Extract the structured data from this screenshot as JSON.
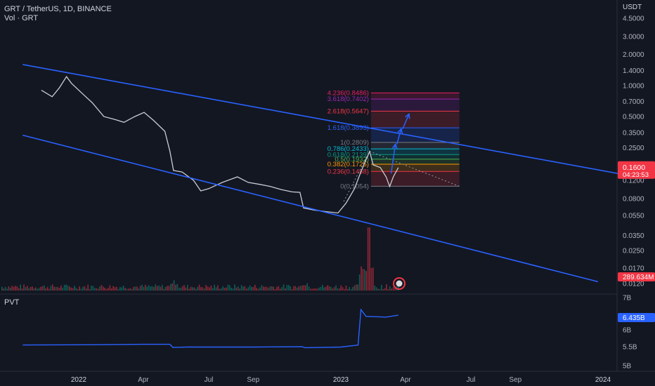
{
  "header": {
    "symbol_line": "GRT / TetherUS, 1D, BINANCE",
    "volume_label": "Vol · GRT",
    "currency": "USDT"
  },
  "pvt_panel": {
    "label": "PVT",
    "price_axis": [
      "7B",
      "6B",
      "5.5B",
      "5B"
    ],
    "current_badge": "6.435B"
  },
  "badges": {
    "price": "0.1600",
    "countdown": "04:23:53",
    "volume": "289.634M"
  },
  "colors": {
    "background": "#131722",
    "channel_line": "#2962ff",
    "price_badge": "#f23645",
    "pvt_line": "#2962ff",
    "volume_badge": "#f23645"
  },
  "chart_data": {
    "type": "line",
    "y_scale": "log",
    "price_axis_ticks": [
      "4.5000",
      "3.0000",
      "2.0000",
      "1.4000",
      "1.0000",
      "0.7000",
      "0.5000",
      "0.3500",
      "0.2500",
      "0.1200",
      "0.0800",
      "0.0550",
      "0.0350",
      "0.0250",
      "0.0170",
      "0.0120"
    ],
    "time_axis_ticks": [
      "2022",
      "Apr",
      "Jul",
      "Sep",
      "2023",
      "Apr",
      "Jul",
      "Sep",
      "2024"
    ],
    "price_path": [
      [
        "2021-11-10",
        0.9
      ],
      [
        "2021-11-25",
        0.78
      ],
      [
        "2021-12-05",
        0.95
      ],
      [
        "2021-12-15",
        1.22
      ],
      [
        "2021-12-22",
        1.05
      ],
      [
        "2022-01-05",
        0.85
      ],
      [
        "2022-01-20",
        0.68
      ],
      [
        "2022-02-05",
        0.5
      ],
      [
        "2022-02-20",
        0.47
      ],
      [
        "2022-03-05",
        0.44
      ],
      [
        "2022-03-20",
        0.5
      ],
      [
        "2022-04-02",
        0.55
      ],
      [
        "2022-04-15",
        0.46
      ],
      [
        "2022-05-01",
        0.36
      ],
      [
        "2022-05-08",
        0.23
      ],
      [
        "2022-05-13",
        0.15
      ],
      [
        "2022-05-25",
        0.145
      ],
      [
        "2022-06-10",
        0.12
      ],
      [
        "2022-06-20",
        0.095
      ],
      [
        "2022-07-01",
        0.1
      ],
      [
        "2022-07-20",
        0.115
      ],
      [
        "2022-08-10",
        0.13
      ],
      [
        "2022-08-25",
        0.115
      ],
      [
        "2022-09-10",
        0.11
      ],
      [
        "2022-09-25",
        0.105
      ],
      [
        "2022-10-10",
        0.098
      ],
      [
        "2022-10-25",
        0.093
      ],
      [
        "2022-11-05",
        0.092
      ],
      [
        "2022-11-10",
        0.065
      ],
      [
        "2022-11-25",
        0.062
      ],
      [
        "2022-12-10",
        0.06
      ],
      [
        "2022-12-28",
        0.058
      ],
      [
        "2023-01-08",
        0.072
      ],
      [
        "2023-01-20",
        0.1
      ],
      [
        "2023-01-28",
        0.14
      ],
      [
        "2023-02-05",
        0.19
      ],
      [
        "2023-02-10",
        0.23
      ],
      [
        "2023-02-15",
        0.17
      ],
      [
        "2023-02-25",
        0.16
      ],
      [
        "2023-03-05",
        0.13
      ],
      [
        "2023-03-10",
        0.105
      ],
      [
        "2023-03-15",
        0.13
      ],
      [
        "2023-03-22",
        0.16
      ]
    ],
    "fibonacci": {
      "levels": [
        {
          "label": "0(0.1054)",
          "value": 0.1054,
          "color": "#787b86"
        },
        {
          "label": "0.236(0.1468)",
          "value": 0.1468,
          "color": "#f23645"
        },
        {
          "label": "0.382(0.1725)",
          "value": 0.1725,
          "color": "#ff9800"
        },
        {
          "label": "0.5(0.1932)",
          "value": 0.1932,
          "color": "#4caf50"
        },
        {
          "label": "0.618(0.2139)",
          "value": 0.2139,
          "color": "#089981"
        },
        {
          "label": "0.786(0.2433)",
          "value": 0.2433,
          "color": "#00bcd4"
        },
        {
          "label": "1(0.2809)",
          "value": 0.2809,
          "color": "#787b86"
        },
        {
          "label": "1.618(0.3893)",
          "value": 0.3893,
          "color": "#2962ff"
        },
        {
          "label": "2.618(0.5647)",
          "value": 0.5647,
          "color": "#f23645"
        },
        {
          "label": "3.618(0.7402)",
          "value": 0.7402,
          "color": "#9c27b0"
        },
        {
          "label": "4.236(0.8486)",
          "value": 0.8486,
          "color": "#e91e63"
        }
      ],
      "start": "2023-02-12",
      "end": "2023-06-15"
    },
    "trend_channel": {
      "upper": [
        [
          "2021-10-15",
          1.6
        ],
        [
          "2024-03-01",
          0.125
        ]
      ],
      "lower": [
        [
          "2021-10-15",
          0.33
        ],
        [
          "2023-12-25",
          0.0125
        ]
      ]
    },
    "projection_arrows": [
      {
        "from": [
          "2023-03-12",
          0.14
        ],
        "to": [
          "2023-03-18",
          0.27
        ]
      },
      {
        "from": [
          "2023-03-20",
          0.27
        ],
        "to": [
          "2023-03-26",
          0.38
        ]
      },
      {
        "from": [
          "2023-03-28",
          0.38
        ],
        "to": [
          "2023-04-06",
          0.53
        ]
      }
    ],
    "pvt_path": [
      [
        "2021-10-15",
        5.55
      ],
      [
        "2022-02-01",
        5.56
      ],
      [
        "2022-04-01",
        5.57
      ],
      [
        "2022-05-08",
        5.57
      ],
      [
        "2022-05-12",
        5.48
      ],
      [
        "2022-06-01",
        5.49
      ],
      [
        "2022-09-01",
        5.49
      ],
      [
        "2022-11-08",
        5.5
      ],
      [
        "2022-11-12",
        5.47
      ],
      [
        "2023-01-01",
        5.49
      ],
      [
        "2023-01-25",
        5.55
      ],
      [
        "2023-01-29",
        6.6
      ],
      [
        "2023-02-05",
        6.4
      ],
      [
        "2023-03-05",
        6.38
      ],
      [
        "2023-03-22",
        6.435
      ]
    ]
  }
}
